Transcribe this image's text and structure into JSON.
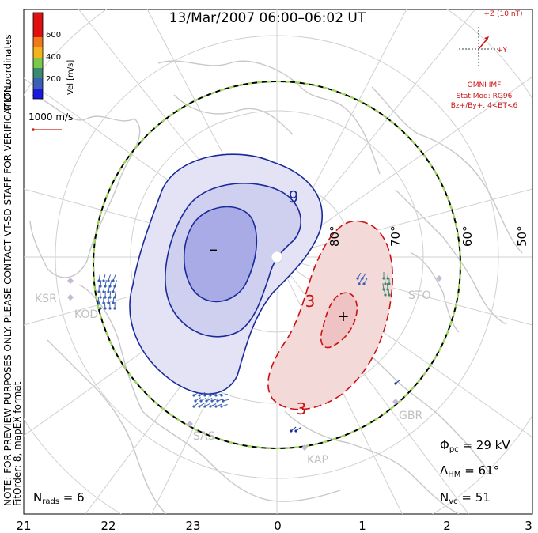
{
  "title": "13/Mar/2007 06:00–06:02 UT",
  "colorbar": {
    "label": "Vel [m/s]",
    "ticks": [
      "600",
      "400",
      "200"
    ],
    "colors": [
      "#e01010",
      "#f07a1a",
      "#f5b21d",
      "#7cc94a",
      "#3a8a72",
      "#3a5fb5",
      "#1a1ae0"
    ]
  },
  "coord_label": "MLT coordinates",
  "scale_vector": "1000 m/s",
  "note": "NOTE: FOR PREVIEW PURPOSES ONLY. PLEASE CONTACT VT-SD STAFF FOR VERIFICATION.",
  "fit_order": "FitOrder: 8, mapEX format",
  "imf": {
    "z_label": "+Z (10 nT)",
    "y_label": "+Y",
    "source": "OMNI IMF",
    "model_line1": "Stat Mod: RG96",
    "model_line2": "Bz+/By+, 4<BT<6"
  },
  "stats": {
    "nrads_label": "N",
    "nrads_sub": "rads",
    "nrads_value": " = 6",
    "phi_label": "Φ",
    "phi_sub": "pc",
    "phi_value": " = 29 kV",
    "lam_label": "Λ",
    "lam_sub": "HM",
    "lam_value": " = 61°",
    "nvc_label": "N",
    "nvc_sub": "vc",
    "nvc_value": " = 51"
  },
  "latitude_labels": [
    "80°",
    "70°",
    "60°",
    "50°"
  ],
  "mlt_axis": [
    "21",
    "22",
    "23",
    "0",
    "1",
    "2",
    "3"
  ],
  "contours": {
    "negative_label": "9",
    "positive_labels": [
      "3",
      "3"
    ],
    "min_marker": "–",
    "max_marker": "+"
  },
  "stations": [
    "KSR",
    "KOD",
    "SAS",
    "KAP",
    "GBR",
    "STO"
  ],
  "chart_data": {
    "type": "convection-map",
    "title": "13/Mar/2007 06:00–06:02 UT",
    "cross_polar_cap_potential_kV": 29,
    "heppner_maynard_boundary_deg": 61,
    "n_radars": 6,
    "n_vectors": 51,
    "velocity_scale_max_ms": 600,
    "mlt_range": [
      21,
      3
    ],
    "latitude_circles_deg": [
      80,
      70,
      60,
      50
    ]
  }
}
